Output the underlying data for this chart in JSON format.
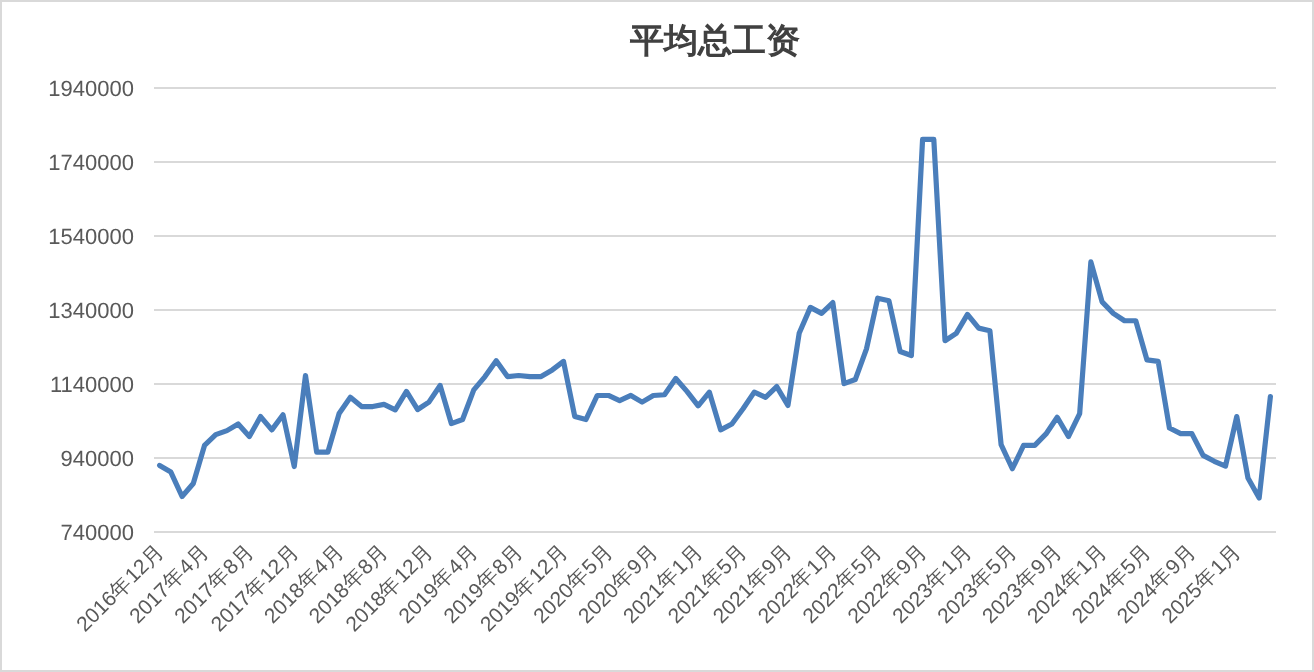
{
  "chart_data": {
    "type": "line",
    "title": "平均总工资",
    "categories": [
      "2016年12月",
      null,
      null,
      null,
      "2017年4月",
      null,
      null,
      null,
      "2017年8月",
      null,
      null,
      null,
      "2017年12月",
      null,
      null,
      null,
      "2018年4月",
      null,
      null,
      null,
      "2018年8月",
      null,
      null,
      null,
      "2018年12月",
      null,
      null,
      null,
      "2019年4月",
      null,
      null,
      null,
      "2019年8月",
      null,
      null,
      null,
      "2019年12月",
      null,
      null,
      null,
      "2020年5月",
      null,
      null,
      null,
      "2020年9月",
      null,
      null,
      null,
      "2021年1月",
      null,
      null,
      null,
      "2021年5月",
      null,
      null,
      null,
      "2021年9月",
      null,
      null,
      null,
      "2022年1月",
      null,
      null,
      null,
      "2022年5月",
      null,
      null,
      null,
      "2022年9月",
      null,
      null,
      null,
      "2023年1月",
      null,
      null,
      null,
      "2023年5月",
      null,
      null,
      null,
      "2023年9月",
      null,
      null,
      null,
      "2024年1月",
      null,
      null,
      null,
      "2024年5月",
      null,
      null,
      null,
      "2024年9月",
      null,
      null,
      null,
      "2025年1月",
      null,
      null,
      null
    ],
    "series": [
      {
        "color": "#4a7ebb",
        "values": [
          920000,
          902000,
          836000,
          871000,
          974000,
          1003000,
          1014000,
          1032000,
          998000,
          1052000,
          1016000,
          1057000,
          917000,
          1163000,
          956000,
          956000,
          1060000,
          1104000,
          1079000,
          1079000,
          1085000,
          1070000,
          1120000,
          1071000,
          1091000,
          1136000,
          1033000,
          1044000,
          1124000,
          1160000,
          1203000,
          1160000,
          1163000,
          1160000,
          1160000,
          1178000,
          1201000,
          1052000,
          1044000,
          1109000,
          1109000,
          1095000,
          1109000,
          1091000,
          1109000,
          1111000,
          1155000,
          1120000,
          1081000,
          1118000,
          1016000,
          1032000,
          1073000,
          1118000,
          1104000,
          1133000,
          1082000,
          1277000,
          1347000,
          1331000,
          1360000,
          1141000,
          1152000,
          1235000,
          1372000,
          1365000,
          1228000,
          1217000,
          1801000,
          1801000,
          1257000,
          1277000,
          1328000,
          1291000,
          1284000,
          976000,
          911000,
          974000,
          974000,
          1005000,
          1050000,
          998000,
          1060000,
          1470000,
          1362000,
          1331000,
          1311000,
          1311000,
          1205000,
          1201000,
          1021000,
          1006000,
          1006000,
          947000,
          931000,
          918000,
          1052000,
          886000,
          832000,
          1106000
        ]
      }
    ],
    "ylim": [
      740000,
      1940000
    ],
    "yticks": [
      740000,
      940000,
      1140000,
      1340000,
      1540000,
      1740000,
      1940000
    ],
    "grid": "y"
  }
}
